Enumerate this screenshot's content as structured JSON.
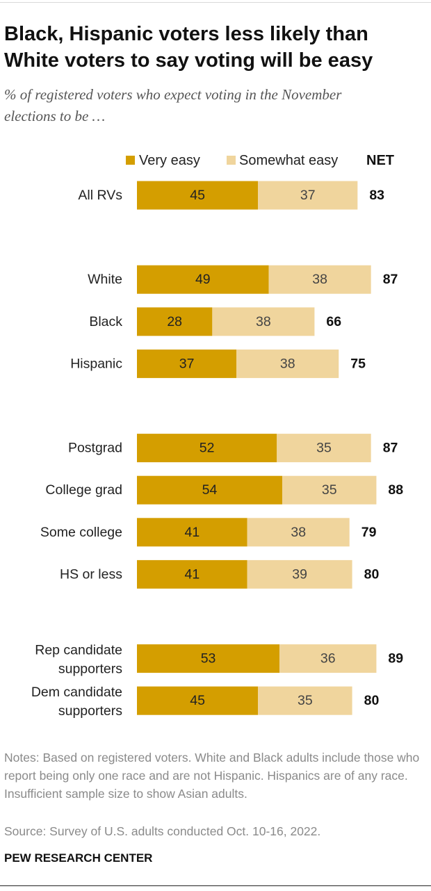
{
  "title": "Black, Hispanic voters less likely than White voters to say voting will be easy",
  "subtitle": "% of registered voters who expect voting in the November elections to be …",
  "legend": {
    "very_easy": "Very easy",
    "somewhat_easy": "Somewhat easy",
    "net": "NET"
  },
  "colors": {
    "very_easy": "#d49e00",
    "somewhat_easy": "#f0d59d",
    "text_dark": "#222222"
  },
  "chart_data": {
    "type": "bar",
    "orientation": "horizontal",
    "stacked": true,
    "title": "Black, Hispanic voters less likely than White voters to say voting will be easy",
    "xlim": [
      0,
      100
    ],
    "series": [
      {
        "name": "Very easy",
        "values": [
          45,
          49,
          28,
          37,
          52,
          54,
          41,
          41,
          53,
          45
        ]
      },
      {
        "name": "Somewhat easy",
        "values": [
          37,
          38,
          38,
          38,
          35,
          35,
          38,
          39,
          36,
          35
        ]
      }
    ],
    "net": [
      83,
      87,
      66,
      75,
      87,
      88,
      79,
      80,
      89,
      80
    ],
    "categories": [
      {
        "lines": [
          "All RVs"
        ],
        "group": 0
      },
      {
        "lines": [
          "White"
        ],
        "group": 1
      },
      {
        "lines": [
          "Black"
        ],
        "group": 1
      },
      {
        "lines": [
          "Hispanic"
        ],
        "group": 1
      },
      {
        "lines": [
          "Postgrad"
        ],
        "group": 2
      },
      {
        "lines": [
          "College grad"
        ],
        "group": 2
      },
      {
        "lines": [
          "Some college"
        ],
        "group": 2
      },
      {
        "lines": [
          "HS or less"
        ],
        "group": 2
      },
      {
        "lines": [
          "Rep candidate",
          "supporters"
        ],
        "group": 3
      },
      {
        "lines": [
          "Dem candidate",
          "supporters"
        ],
        "group": 3
      }
    ]
  },
  "notes": "Notes: Based on registered voters. White and Black adults include those who report being only one race and are not Hispanic. Hispanics are of any race. Insufficient sample size to show Asian adults.",
  "source": "Source: Survey of U.S. adults conducted Oct. 10-16, 2022.",
  "brand": "PEW RESEARCH CENTER"
}
